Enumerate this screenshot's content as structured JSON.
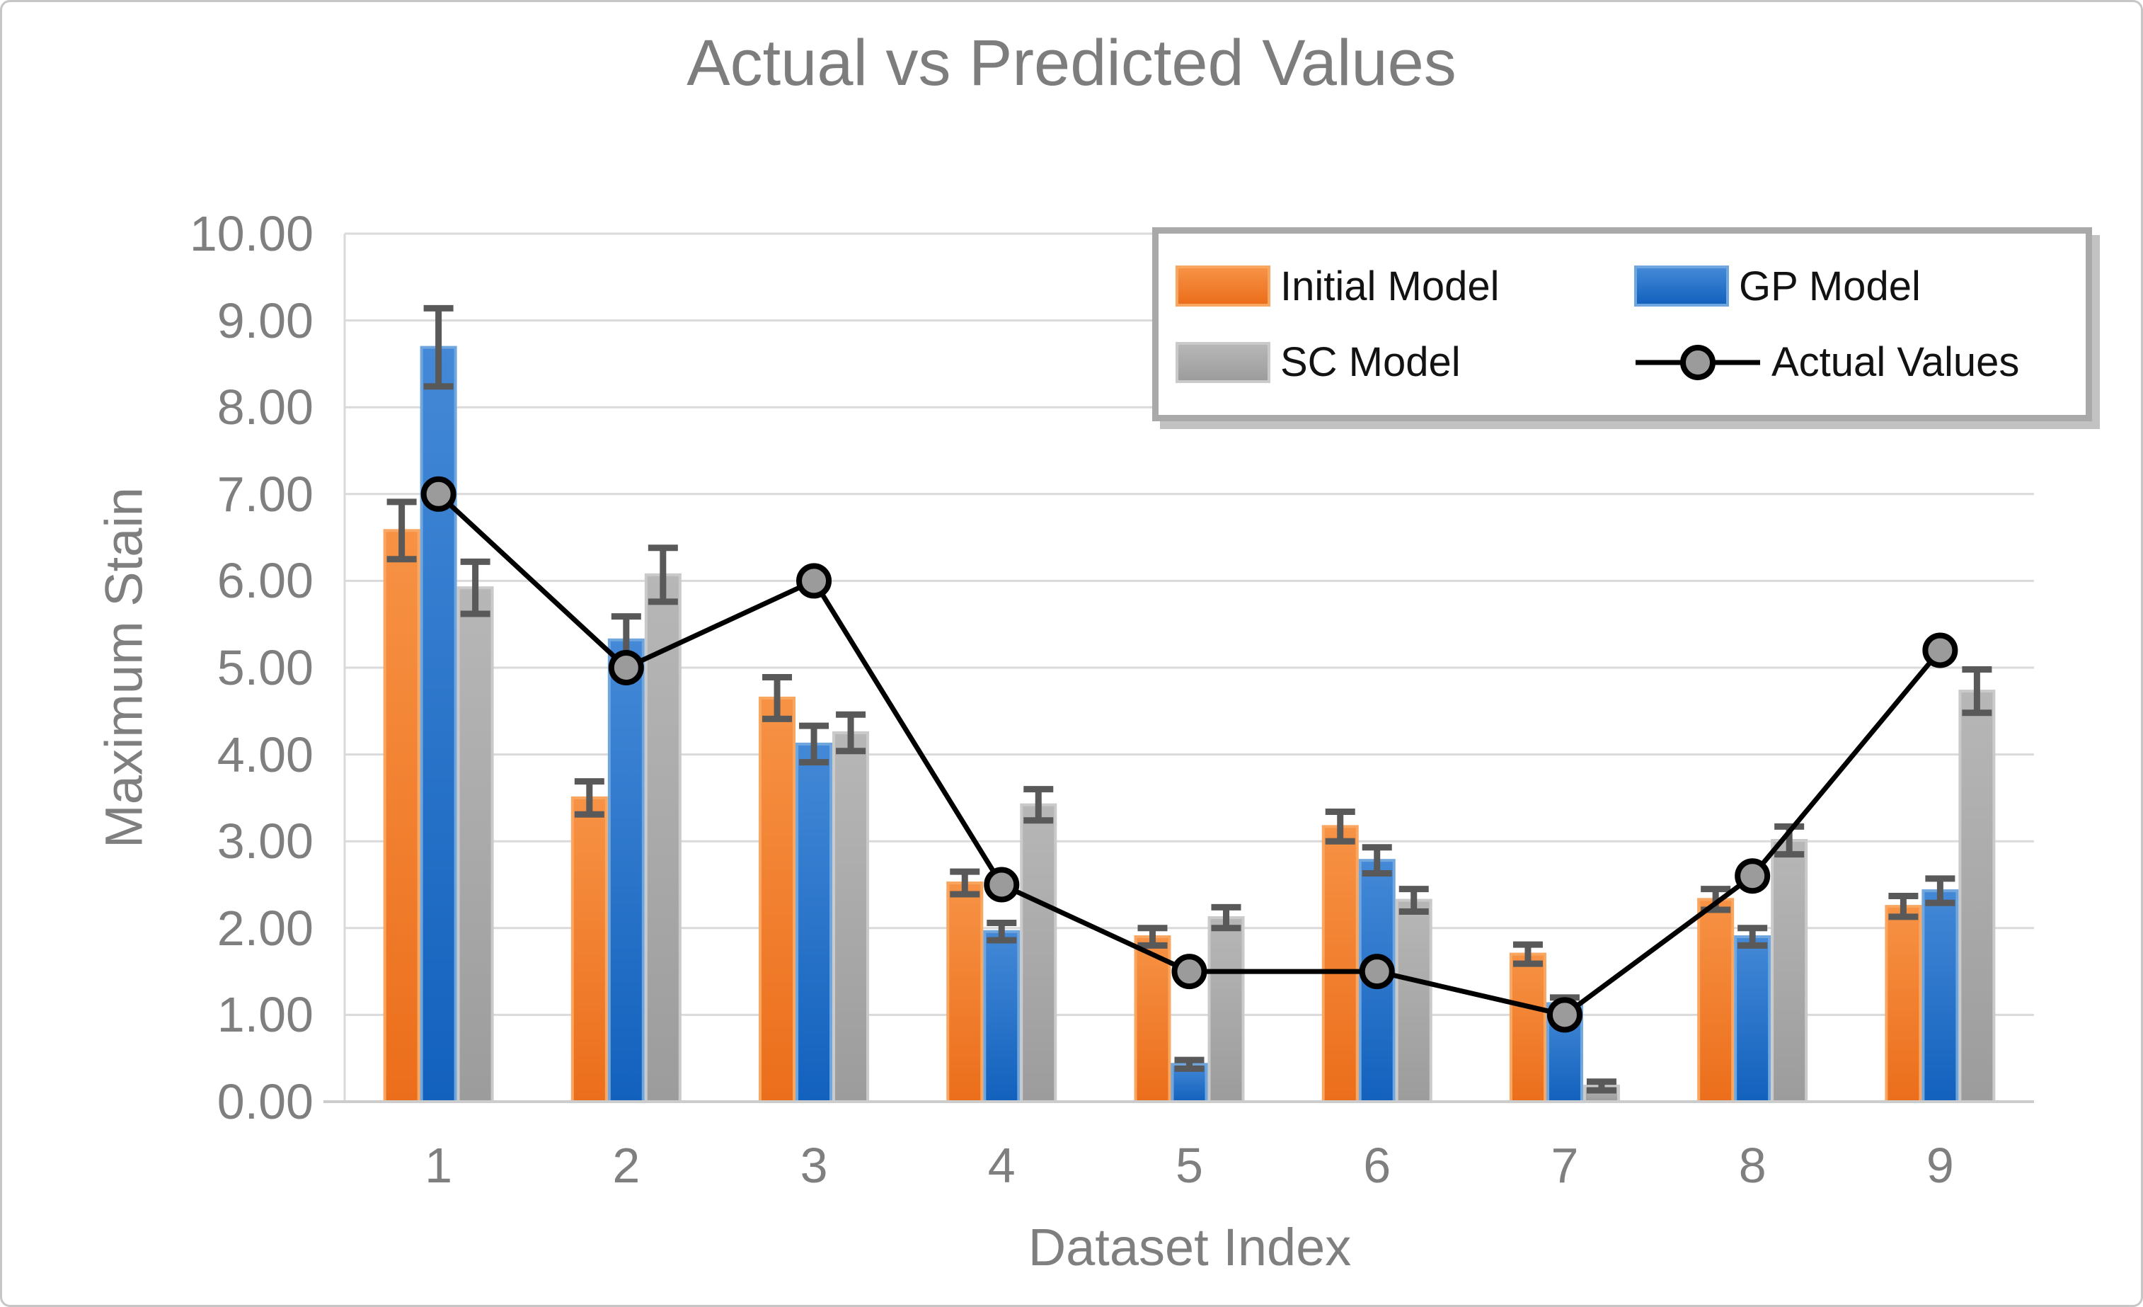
{
  "chart_data": {
    "type": "bar",
    "title": "Actual vs Predicted Values",
    "xlabel": "Dataset Index",
    "ylabel": "Maximum Stain",
    "categories": [
      "1",
      "2",
      "3",
      "4",
      "5",
      "6",
      "7",
      "8",
      "9"
    ],
    "ylim": [
      0,
      10
    ],
    "y_tick_step": 1,
    "y_tick_decimals": 2,
    "grid": true,
    "legend_position": "top-right",
    "error_bars": true,
    "series": [
      {
        "name": "Initial Model",
        "type": "bar",
        "color": "#ED7D31",
        "gradient_top": "#F79245",
        "gradient_bottom": "#EB6E1B",
        "border": "#F9A660",
        "values": [
          6.58,
          3.5,
          4.65,
          2.52,
          1.9,
          3.17,
          1.7,
          2.33,
          2.25
        ],
        "errors": [
          0.33,
          0.19,
          0.24,
          0.13,
          0.1,
          0.17,
          0.11,
          0.12,
          0.12
        ]
      },
      {
        "name": "GP Model",
        "type": "bar",
        "color": "#1F6FC5",
        "gradient_top": "#4489D7",
        "gradient_bottom": "#1261BD",
        "border": "#6FA6DE",
        "values": [
          8.69,
          5.32,
          4.12,
          1.96,
          0.43,
          2.78,
          1.13,
          1.9,
          2.43
        ],
        "errors": [
          0.45,
          0.27,
          0.21,
          0.1,
          0.05,
          0.15,
          0.07,
          0.1,
          0.14
        ]
      },
      {
        "name": "SC Model",
        "type": "bar",
        "color": "#A6A6A6",
        "gradient_top": "#B7B7B7",
        "gradient_bottom": "#9C9C9C",
        "border": "#CACACA",
        "values": [
          5.92,
          6.07,
          4.25,
          3.42,
          2.12,
          2.32,
          0.18,
          3.01,
          4.73
        ],
        "errors": [
          0.3,
          0.31,
          0.21,
          0.18,
          0.12,
          0.13,
          0.05,
          0.16,
          0.25
        ]
      },
      {
        "name": "Actual Values",
        "type": "line",
        "line_color": "#000000",
        "marker_fill": "#9B9B9B",
        "marker_border": "#000000",
        "values": [
          7.0,
          5.0,
          6.0,
          2.5,
          1.5,
          1.5,
          1.0,
          2.6,
          5.2
        ]
      }
    ],
    "style": {
      "grid_color": "#DADADA",
      "axis_line_color": "#CCCCCC",
      "error_bar_color": "#595959",
      "tick_text_color": "#7F7F7F",
      "title_color": "#7D7D7D",
      "legend_border_color": "#A9A9A9"
    }
  }
}
